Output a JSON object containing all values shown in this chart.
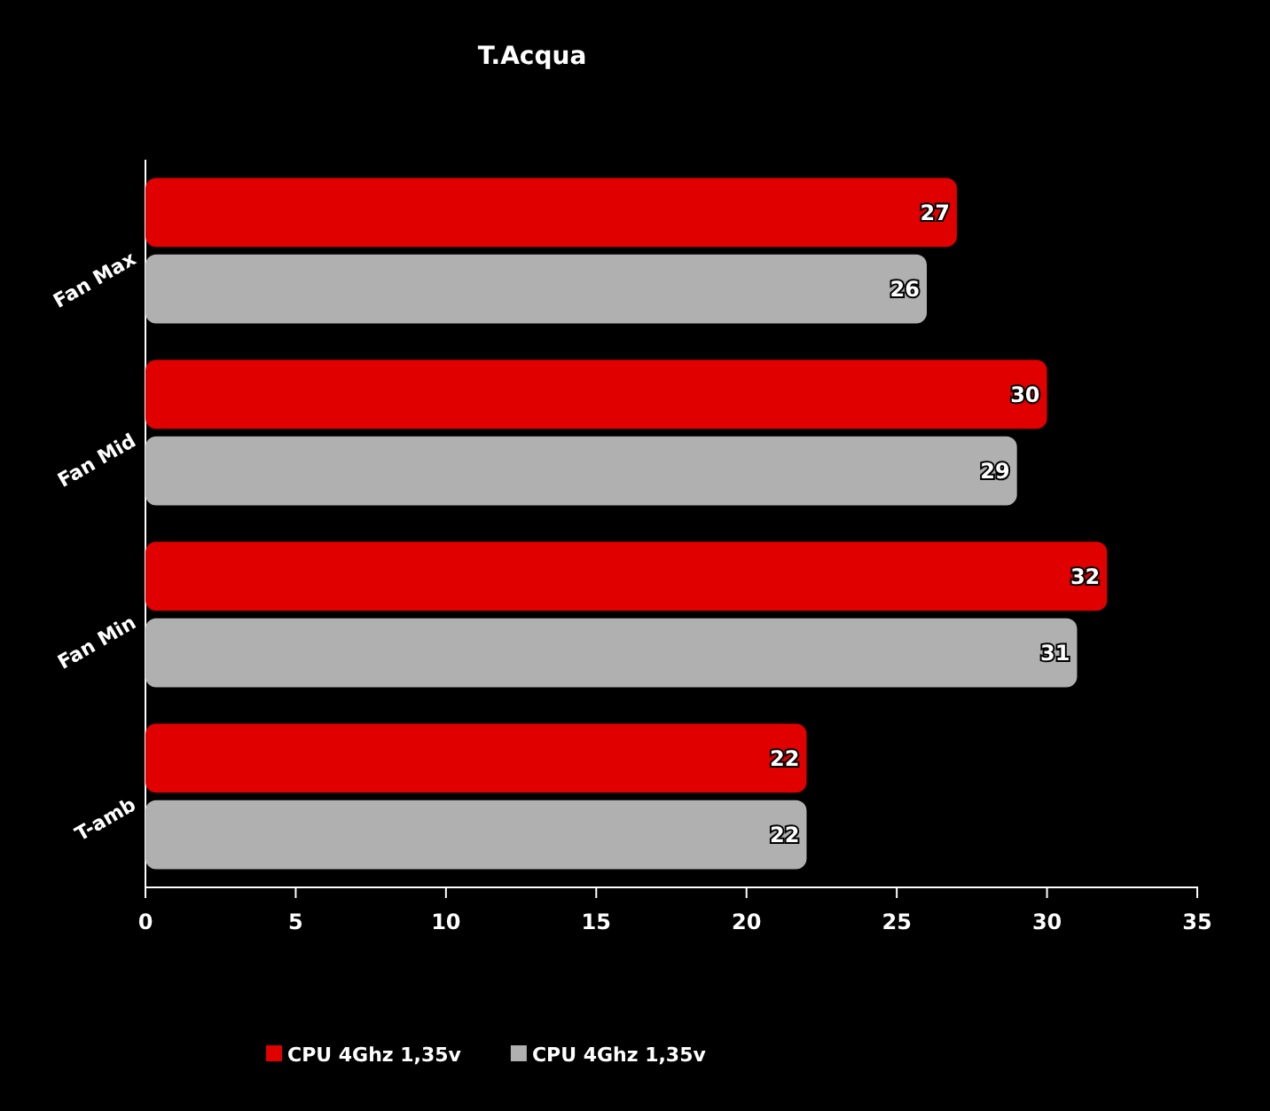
{
  "chart_data": {
    "type": "bar",
    "orientation": "horizontal",
    "title": "T.Acqua",
    "categories": [
      "Fan Max",
      "Fan Mid",
      "Fan Min",
      "T-amb"
    ],
    "series": [
      {
        "name": "CPU 4Ghz 1,35v",
        "color": "#e00000",
        "values": [
          27,
          30,
          32,
          22
        ]
      },
      {
        "name": "CPU 4Ghz 1,35v",
        "color": "#b0b0b0",
        "values": [
          26,
          29,
          31,
          22
        ]
      }
    ],
    "xlim": [
      0,
      35
    ],
    "xticks": [
      0,
      5,
      10,
      15,
      20,
      25,
      30,
      35
    ],
    "grid": false,
    "legend": "bottom",
    "data_labels": true
  }
}
